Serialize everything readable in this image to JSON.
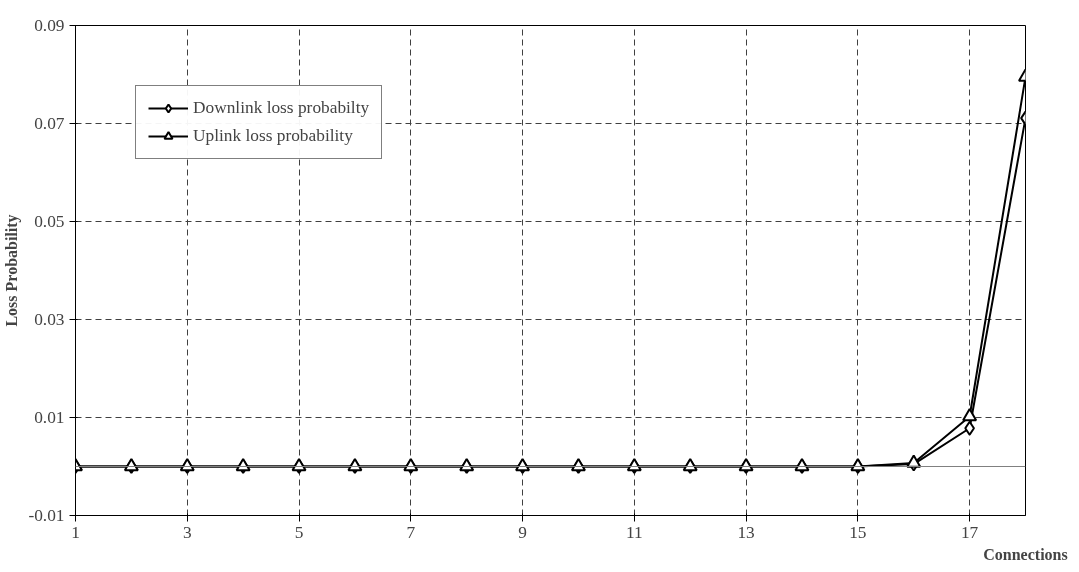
{
  "chart_data": {
    "type": "line",
    "xlabel": "Connections",
    "ylabel": "Loss Probability",
    "x": [
      1,
      2,
      3,
      4,
      5,
      6,
      7,
      8,
      9,
      10,
      11,
      12,
      13,
      14,
      15,
      16,
      17,
      18
    ],
    "series": [
      {
        "name": "Downlink loss probabilty",
        "color": "#000000",
        "marker": "diamond",
        "values": [
          0,
          0,
          0,
          0,
          0,
          0,
          0,
          0,
          0,
          0,
          0,
          0,
          0,
          0,
          0,
          0.0005,
          0.0078,
          0.0711
        ]
      },
      {
        "name": "Uplink loss probability",
        "color": "#000000",
        "marker": "triangle",
        "values": [
          0,
          0,
          0,
          0,
          0,
          0,
          0,
          0,
          0,
          0,
          0,
          0,
          0,
          0,
          0,
          0.0007,
          0.0102,
          0.0795
        ]
      }
    ],
    "xlim": [
      1,
      18
    ],
    "xticks": [
      1,
      3,
      5,
      7,
      9,
      11,
      13,
      15,
      17
    ],
    "ylim": [
      -0.01,
      0.09
    ],
    "yticks": [
      -0.01,
      0.01,
      0.03,
      0.05,
      0.07,
      0.09
    ],
    "ref_lines": [
      {
        "axis": "y",
        "value": 0,
        "color": "#808080"
      }
    ],
    "grid": true,
    "legend": "top left",
    "line_style": "solid"
  }
}
